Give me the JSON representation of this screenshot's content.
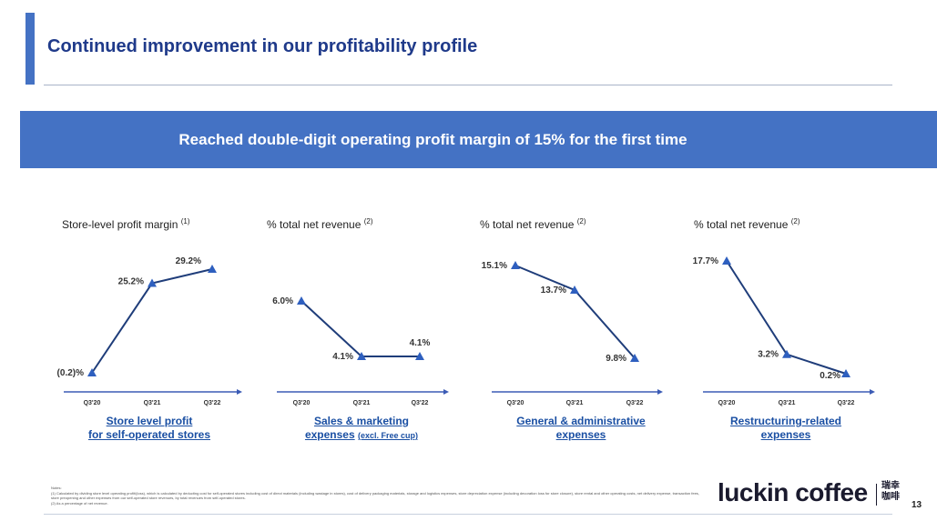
{
  "slide": {
    "title": "Continued improvement in our profitability profile",
    "banner": "Reached double-digit operating profit margin of 15% for the first time",
    "page_number": "13"
  },
  "brand": {
    "name": "luckin coffee",
    "chinese": "瑞幸咖啡"
  },
  "notes": {
    "heading": "Notes:",
    "lines": [
      "(1) Calculated by dividing store level operating profit/(loss), which is calculated by deducting cost for self-operated stores including cost of direct materials (including wastage in stores), cost of delivery packaging materials, storage and logistics expenses, store depreciation expense (including decoration loss for store closure), store rental and other operating costs, net delivery expense, transaction fees, store preopening and other expenses from our self-operated store revenues, by total revenues from self-operated stores.",
      "(2) As a percentage of net revenue."
    ]
  },
  "colors": {
    "accent": "#4472c4",
    "title": "#1f3a8a",
    "line": "#1f3d7a",
    "marker": "#2e5fbf",
    "caption": "#1a4fa3"
  },
  "chart_data": [
    {
      "type": "line",
      "label": "Store-level profit margin",
      "label_note": "(1)",
      "categories": [
        "Q3'20",
        "Q3'21",
        "Q3'22"
      ],
      "values": [
        -0.2,
        25.2,
        29.2
      ],
      "data_labels": [
        "(0.2)%",
        "25.2%",
        "29.2%"
      ],
      "ylim": [
        -1,
        30
      ],
      "caption_lines": [
        "Store level profit",
        "for self-operated stores"
      ],
      "caption_small": ""
    },
    {
      "type": "line",
      "label": "% total net revenue",
      "label_note": "(2)",
      "categories": [
        "Q3'20",
        "Q3'21",
        "Q3'22"
      ],
      "values": [
        6.0,
        4.1,
        4.1
      ],
      "data_labels": [
        "6.0%",
        "4.1%",
        "4.1%"
      ],
      "ylim": [
        3.2,
        7.7
      ],
      "caption_lines": [
        "Sales & marketing",
        "expenses"
      ],
      "caption_small": "(excl. Free cup)"
    },
    {
      "type": "line",
      "label": "% total net revenue",
      "label_note": "(2)",
      "categories": [
        "Q3'20",
        "Q3'21",
        "Q3'22"
      ],
      "values": [
        15.1,
        13.7,
        9.8
      ],
      "data_labels": [
        "15.1%",
        "13.7%",
        "9.8%"
      ],
      "ylim": [
        9.0,
        15.6
      ],
      "caption_lines": [
        "General & administrative",
        "expenses"
      ],
      "caption_small": ""
    },
    {
      "type": "line",
      "label": "% total net revenue",
      "label_note": "(2)",
      "categories": [
        "Q3'20",
        "Q3'21",
        "Q3'22"
      ],
      "values": [
        17.7,
        3.2,
        0.2
      ],
      "data_labels": [
        "17.7%",
        "3.2%",
        "0.2%"
      ],
      "ylim": [
        -1.0,
        18.5
      ],
      "caption_lines": [
        "Restructuring-related",
        "expenses"
      ],
      "caption_small": ""
    }
  ]
}
